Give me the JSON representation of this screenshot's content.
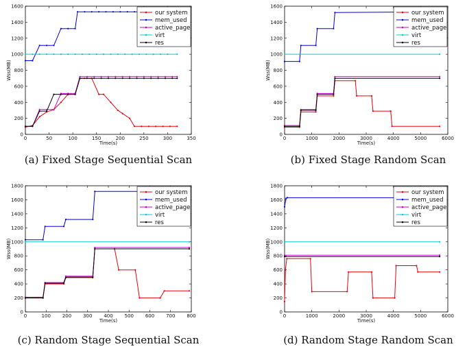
{
  "chart_data": [
    {
      "type": "line",
      "caption": "(a) Fixed Stage Sequential Scan",
      "xlabel": "Time(s)",
      "ylabel": "Wss(MB)",
      "xlim": [
        0,
        350
      ],
      "ylim": [
        0,
        1600
      ],
      "xticks": [
        0,
        50,
        100,
        150,
        200,
        250,
        300,
        350
      ],
      "yticks": [
        0,
        200,
        400,
        600,
        800,
        1000,
        1200,
        1400,
        1600
      ],
      "legend": "top-right",
      "series": [
        {
          "name": "our system",
          "color": "#e8000b",
          "x": [
            0,
            15,
            30,
            45,
            60,
            75,
            90,
            105,
            115,
            125,
            140,
            155,
            165,
            180,
            195,
            205,
            220,
            230,
            245,
            260,
            275,
            290,
            305,
            320
          ],
          "y": [
            90,
            110,
            220,
            280,
            310,
            400,
            500,
            500,
            700,
            700,
            700,
            500,
            500,
            400,
            300,
            260,
            200,
            100,
            100,
            100,
            100,
            100,
            100,
            100
          ]
        },
        {
          "name": "mem_used",
          "color": "#0000dd",
          "x": [
            0,
            15,
            30,
            45,
            60,
            75,
            90,
            105,
            110,
            125,
            140,
            155,
            170,
            185,
            200,
            215,
            230,
            245,
            260,
            275,
            290,
            305,
            320
          ],
          "y": [
            920,
            920,
            1110,
            1110,
            1110,
            1320,
            1320,
            1320,
            1530,
            1530,
            1530,
            1530,
            1530,
            1530,
            1530,
            1530,
            1530,
            1530,
            1530,
            1530,
            1530,
            1530,
            1530
          ]
        },
        {
          "name": "active_page",
          "color": "#cc00cc",
          "x": [
            0,
            15,
            30,
            45,
            60,
            75,
            90,
            105,
            115,
            130,
            145,
            160,
            175,
            190,
            205,
            220,
            235,
            250,
            265,
            280,
            295,
            310,
            320
          ],
          "y": [
            100,
            100,
            310,
            310,
            310,
            510,
            510,
            510,
            720,
            720,
            720,
            720,
            720,
            720,
            720,
            720,
            720,
            720,
            720,
            720,
            720,
            720,
            720
          ]
        },
        {
          "name": "virt",
          "color": "#00cccc",
          "x": [
            0,
            15,
            30,
            45,
            60,
            75,
            90,
            105,
            120,
            135,
            150,
            165,
            180,
            195,
            210,
            225,
            240,
            255,
            270,
            285,
            300,
            320
          ],
          "y": [
            1000,
            1000,
            1000,
            1000,
            1000,
            1000,
            1000,
            1000,
            1000,
            1000,
            1000,
            1000,
            1000,
            1000,
            1000,
            1000,
            1000,
            1000,
            1000,
            1000,
            1000,
            1000
          ]
        },
        {
          "name": "res",
          "color": "#000000",
          "x": [
            0,
            15,
            30,
            45,
            60,
            75,
            90,
            105,
            115,
            130,
            145,
            160,
            175,
            190,
            205,
            220,
            235,
            250,
            265,
            280,
            295,
            310,
            320
          ],
          "y": [
            100,
            100,
            290,
            290,
            500,
            500,
            500,
            500,
            700,
            700,
            700,
            700,
            700,
            700,
            700,
            700,
            700,
            700,
            700,
            700,
            700,
            700,
            700
          ]
        }
      ]
    },
    {
      "type": "line",
      "caption": "(b) Fixed Stage Random Scan",
      "xlabel": "Time(s)",
      "ylabel": "Wss(MB)",
      "xlim": [
        0,
        6000
      ],
      "ylim": [
        0,
        1600
      ],
      "xticks": [
        0,
        1000,
        2000,
        3000,
        4000,
        5000,
        6000
      ],
      "yticks": [
        0,
        200,
        400,
        600,
        800,
        1000,
        1200,
        1400,
        1600
      ],
      "legend": "top-right",
      "series": [
        {
          "name": "our system",
          "color": "#e8000b",
          "x": [
            0,
            550,
            600,
            1150,
            1200,
            1800,
            1850,
            2600,
            2650,
            3200,
            3250,
            3900,
            3950,
            5700
          ],
          "y": [
            90,
            90,
            280,
            280,
            480,
            480,
            670,
            670,
            480,
            480,
            290,
            290,
            100,
            100
          ]
        },
        {
          "name": "mem_used",
          "color": "#0000dd",
          "x": [
            0,
            550,
            600,
            1150,
            1200,
            1800,
            1850,
            5700
          ],
          "y": [
            910,
            910,
            1110,
            1110,
            1320,
            1320,
            1520,
            1530
          ]
        },
        {
          "name": "active_page",
          "color": "#cc00cc",
          "x": [
            0,
            550,
            600,
            1150,
            1200,
            1800,
            1850,
            5700
          ],
          "y": [
            110,
            110,
            310,
            310,
            510,
            510,
            720,
            720
          ]
        },
        {
          "name": "virt",
          "color": "#00cccc",
          "x": [
            0,
            5700
          ],
          "y": [
            1000,
            1000
          ]
        },
        {
          "name": "res",
          "color": "#000000",
          "x": [
            0,
            550,
            600,
            1150,
            1200,
            1800,
            1850,
            5700
          ],
          "y": [
            100,
            100,
            300,
            300,
            500,
            500,
            700,
            700
          ]
        }
      ]
    },
    {
      "type": "line",
      "caption": "(c) Random Stage Sequential Scan",
      "xlabel": "Time(s)",
      "ylabel": "Wss(MB)",
      "xlim": [
        0,
        800
      ],
      "ylim": [
        0,
        1800
      ],
      "xticks": [
        0,
        100,
        200,
        300,
        400,
        500,
        600,
        700,
        800
      ],
      "yticks": [
        0,
        200,
        400,
        600,
        800,
        1000,
        1200,
        1400,
        1600,
        1800
      ],
      "legend": "top-right",
      "series": [
        {
          "name": "our system",
          "color": "#e8000b",
          "x": [
            0,
            85,
            95,
            185,
            195,
            325,
            335,
            430,
            450,
            530,
            550,
            650,
            670,
            790
          ],
          "y": [
            200,
            200,
            400,
            400,
            500,
            500,
            900,
            900,
            600,
            600,
            200,
            200,
            300,
            300
          ]
        },
        {
          "name": "mem_used",
          "color": "#0000dd",
          "x": [
            0,
            85,
            95,
            185,
            195,
            325,
            335,
            790
          ],
          "y": [
            1030,
            1030,
            1220,
            1220,
            1320,
            1320,
            1720,
            1720
          ]
        },
        {
          "name": "active_page",
          "color": "#cc00cc",
          "x": [
            0,
            85,
            95,
            185,
            195,
            325,
            335,
            790
          ],
          "y": [
            210,
            210,
            420,
            420,
            510,
            510,
            920,
            920
          ]
        },
        {
          "name": "virt",
          "color": "#00cccc",
          "x": [
            0,
            790
          ],
          "y": [
            1000,
            1000
          ]
        },
        {
          "name": "res",
          "color": "#000000",
          "x": [
            0,
            85,
            95,
            185,
            195,
            325,
            335,
            790
          ],
          "y": [
            200,
            200,
            410,
            410,
            490,
            490,
            900,
            900
          ]
        }
      ]
    },
    {
      "type": "line",
      "caption": "(d) Random Stage Random Scan",
      "xlabel": "Time(s)",
      "ylabel": "Wss(MB)",
      "xlim": [
        0,
        6000
      ],
      "ylim": [
        0,
        1800
      ],
      "xticks": [
        0,
        1000,
        2000,
        3000,
        4000,
        5000,
        6000
      ],
      "yticks": [
        0,
        200,
        400,
        600,
        800,
        1000,
        1200,
        1400,
        1600,
        1800
      ],
      "legend": "top-right",
      "series": [
        {
          "name": "our system",
          "color": "#e8000b",
          "x": [
            0,
            30,
            80,
            950,
            1000,
            2300,
            2350,
            3200,
            3250,
            4050,
            4100,
            4850,
            4900,
            5700
          ],
          "y": [
            150,
            600,
            760,
            760,
            290,
            290,
            570,
            570,
            200,
            200,
            660,
            660,
            570,
            570
          ]
        },
        {
          "name": "mem_used",
          "color": "#0000dd",
          "x": [
            0,
            50,
            100,
            5700
          ],
          "y": [
            1500,
            1620,
            1630,
            1630
          ]
        },
        {
          "name": "active_page",
          "color": "#cc00cc",
          "x": [
            0,
            5700
          ],
          "y": [
            810,
            810
          ]
        },
        {
          "name": "virt",
          "color": "#00cccc",
          "x": [
            0,
            5700
          ],
          "y": [
            1000,
            1000
          ]
        },
        {
          "name": "res",
          "color": "#000000",
          "x": [
            0,
            5700
          ],
          "y": [
            790,
            790
          ]
        }
      ]
    }
  ]
}
